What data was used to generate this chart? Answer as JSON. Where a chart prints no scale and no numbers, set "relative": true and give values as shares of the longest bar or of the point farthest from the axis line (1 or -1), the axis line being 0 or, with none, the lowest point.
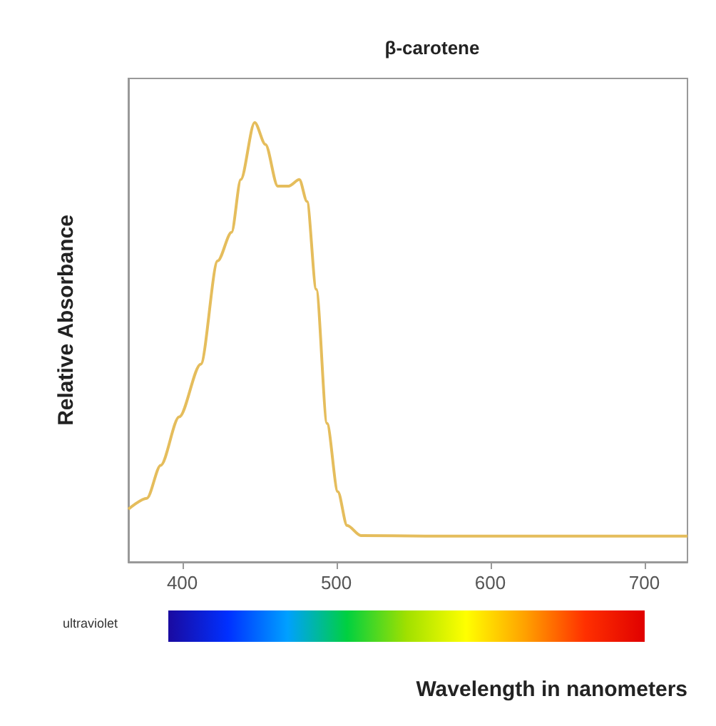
{
  "chart_data": {
    "type": "line",
    "title": "β-carotene",
    "xlabel": "Wavelength in nanometers",
    "ylabel": "Relative Absorbance",
    "relative": true,
    "xlim": [
      365,
      728
    ],
    "xticks": [
      400,
      500,
      600,
      700
    ],
    "grid": false,
    "marker": "none",
    "line_style": "solid",
    "annotations": [
      "ultraviolet"
    ],
    "x": [
      365,
      377,
      386,
      398,
      412,
      423,
      432,
      438,
      447,
      454,
      462,
      469,
      476,
      481,
      487,
      494,
      501,
      507,
      516,
      558,
      728
    ],
    "series": [
      {
        "color": "#e5bd5c",
        "values": [
          0.12,
          0.145,
          0.22,
          0.33,
          0.45,
          0.685,
          0.75,
          0.87,
          1.0,
          0.95,
          0.855,
          0.855,
          0.87,
          0.82,
          0.62,
          0.315,
          0.16,
          0.083,
          0.06,
          0.059,
          0.059
        ]
      }
    ]
  }
}
